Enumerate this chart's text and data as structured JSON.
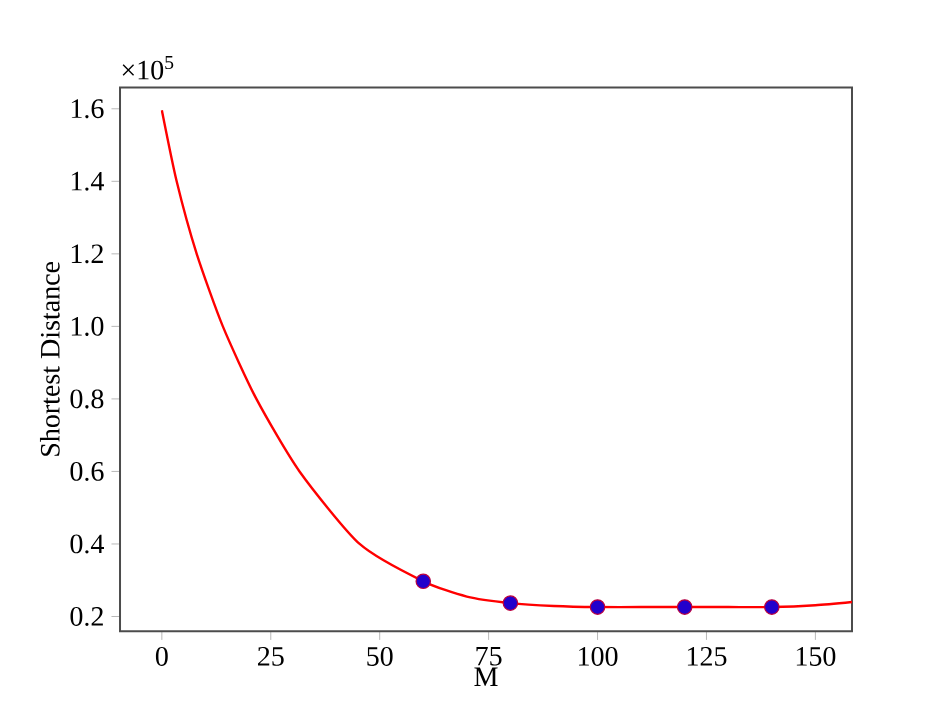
{
  "chart_data": {
    "type": "line",
    "xlabel": "M",
    "ylabel": "Shortest Distance",
    "annotations": [
      "×10$^{5}$"
    ],
    "xlim": [
      -9.6,
      158.4
    ],
    "ylim": [
      0.159,
      1.659
    ],
    "xticks": [
      0,
      25,
      50,
      75,
      100,
      125,
      150
    ],
    "yticks": [
      0.2,
      0.4,
      0.6,
      0.8,
      {
        "value": 1.0,
        "label": "1.0"
      },
      1.2,
      1.4,
      1.6
    ],
    "series": [
      {
        "color": "#ff0000",
        "line_style": "solid",
        "marker": "none",
        "x": [
          0,
          3.4,
          8,
          14,
          21.7,
          31.6,
          45.4,
          60,
          70,
          80,
          90,
          100,
          110,
          120,
          130,
          140,
          150,
          158.4
        ],
        "values": [
          1.596,
          1.4,
          1.2,
          1.0,
          0.8,
          0.6,
          0.4,
          0.297,
          0.255,
          0.237,
          0.229,
          0.226,
          0.226,
          0.226,
          0.226,
          0.226,
          0.231,
          0.24
        ]
      },
      {
        "type": "scatter",
        "color": "#2200cc",
        "marker": "circle",
        "x": [
          60,
          80,
          100,
          120,
          140
        ],
        "values": [
          0.297,
          0.237,
          0.226,
          0.226,
          0.226
        ]
      }
    ]
  }
}
